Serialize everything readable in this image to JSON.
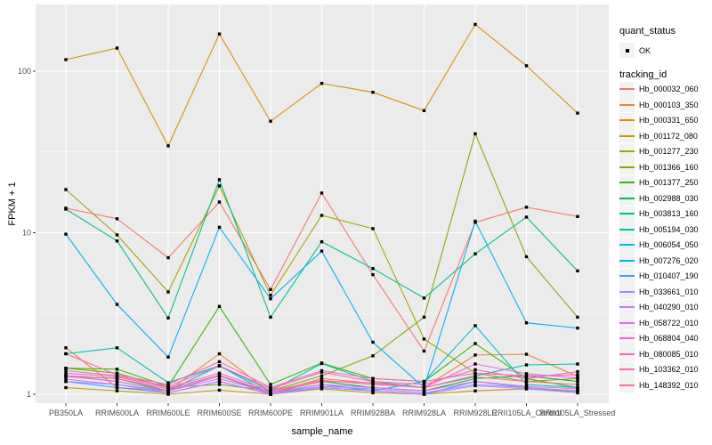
{
  "figure": {
    "background": "#FFFFFF",
    "panel_background": "#EBEBEB",
    "gridline_color": "#FFFFFF",
    "axis_text_color": "#4D4D4D",
    "tick_color": "#333333",
    "point_color": "#000000",
    "legend_key_background": "#F2F2F2"
  },
  "legend": {
    "quant_status_title": "quant_status",
    "quant_status_items": [
      {
        "label": "OK",
        "symbol": "black-square-point"
      }
    ],
    "tracking_id_title": "tracking_id"
  },
  "chart_data": {
    "type": "line",
    "title": "",
    "xlabel": "sample_name",
    "ylabel": "FPKM + 1",
    "y_scale": "log10",
    "y_ticks": [
      1,
      10,
      100
    ],
    "y_minor_ticks": [
      3.1623,
      31.623
    ],
    "ylim": [
      0.93,
      230
    ],
    "grid": true,
    "legend_position": "right",
    "point_marker": "filled-black-square",
    "quant_status": "OK",
    "categories": [
      "PB350LA",
      "RRIM600LA",
      "RRIM600LE",
      "RRIM600SE",
      "RRIM600PE",
      "RRIM901LA",
      "RRIM928BA",
      "RRIM928LA",
      "RRIM928LE",
      "RRII105LA_Control",
      "RRII105LA_Stressed"
    ],
    "series": [
      {
        "name": "Hb_000032_060",
        "color": "#F8766D",
        "values": [
          14.2,
          12.2,
          7.0,
          15.5,
          4.45,
          17.6,
          5.5,
          1.85,
          11.6,
          14.4,
          12.6
        ]
      },
      {
        "name": "Hb_000103_350",
        "color": "#EA8331",
        "values": [
          1.94,
          1.1,
          1.05,
          1.78,
          1.02,
          1.25,
          1.17,
          1.1,
          1.75,
          1.77,
          1.29
        ]
      },
      {
        "name": "Hb_000331_650",
        "color": "#D89000",
        "values": [
          118,
          139,
          34.5,
          170,
          49,
          84,
          74,
          57,
          195,
          108,
          55
        ]
      },
      {
        "name": "Hb_001172_080",
        "color": "#C09B00",
        "values": [
          1.1,
          1.05,
          1.0,
          1.06,
          1.0,
          1.08,
          1.02,
          1.0,
          1.05,
          1.08,
          1.04
        ]
      },
      {
        "name": "Hb_001277_230",
        "color": "#A3A500",
        "values": [
          18.5,
          9.7,
          4.3,
          19.5,
          4.1,
          12.8,
          10.6,
          2.2,
          1.35,
          1.2,
          1.25
        ]
      },
      {
        "name": "Hb_001366_160",
        "color": "#7CAE00",
        "values": [
          1.45,
          1.35,
          1.1,
          1.15,
          1.05,
          1.3,
          1.73,
          3.0,
          41,
          7.1,
          3.0
        ]
      },
      {
        "name": "Hb_001377_250",
        "color": "#39B600",
        "values": [
          1.45,
          1.43,
          1.12,
          3.5,
          1.15,
          1.56,
          1.25,
          1.2,
          2.06,
          1.25,
          1.1
        ]
      },
      {
        "name": "Hb_002988_030",
        "color": "#00BB4E",
        "values": [
          1.3,
          1.25,
          1.05,
          1.3,
          1.02,
          1.2,
          1.1,
          1.05,
          1.25,
          1.3,
          1.2
        ]
      },
      {
        "name": "Hb_003813_160",
        "color": "#00C087",
        "values": [
          14.0,
          8.9,
          2.97,
          21.3,
          3.0,
          8.8,
          6.0,
          3.94,
          7.4,
          12.5,
          5.8
        ]
      },
      {
        "name": "Hb_005194_030",
        "color": "#00C0B2",
        "values": [
          1.78,
          1.94,
          1.18,
          1.5,
          1.05,
          1.55,
          1.2,
          1.1,
          1.3,
          1.52,
          1.54
        ]
      },
      {
        "name": "Hb_006054_050",
        "color": "#00BCD8",
        "values": [
          1.3,
          1.2,
          1.05,
          1.5,
          1.0,
          1.1,
          1.05,
          1.2,
          2.66,
          1.15,
          1.1
        ]
      },
      {
        "name": "Hb_007276_020",
        "color": "#00B0F6",
        "values": [
          9.8,
          3.6,
          1.7,
          10.8,
          3.9,
          7.7,
          2.1,
          1.1,
          11.8,
          2.77,
          2.57
        ]
      },
      {
        "name": "Hb_010407_190",
        "color": "#35A2FF",
        "values": [
          1.2,
          1.1,
          1.02,
          1.2,
          1.0,
          1.15,
          1.05,
          1.0,
          1.2,
          1.1,
          1.05
        ]
      },
      {
        "name": "Hb_033661_010",
        "color": "#9590FF",
        "values": [
          1.2,
          1.15,
          1.05,
          1.3,
          1.0,
          1.12,
          1.08,
          1.02,
          1.15,
          1.1,
          1.05
        ]
      },
      {
        "name": "Hb_040290_010",
        "color": "#C77CFF",
        "values": [
          1.24,
          1.15,
          1.02,
          1.2,
          1.0,
          1.1,
          1.05,
          1.0,
          1.13,
          1.08,
          1.02
        ]
      },
      {
        "name": "Hb_058722_010",
        "color": "#E76BF3",
        "values": [
          1.29,
          1.2,
          1.05,
          1.25,
          1.02,
          1.15,
          1.1,
          1.05,
          1.2,
          1.12,
          1.08
        ]
      },
      {
        "name": "Hb_068804_040",
        "color": "#FA62DB",
        "values": [
          1.35,
          1.28,
          1.1,
          1.35,
          1.05,
          1.22,
          1.15,
          1.1,
          1.54,
          1.34,
          1.26
        ]
      },
      {
        "name": "Hb_080085_010",
        "color": "#FF61C7",
        "values": [
          1.4,
          1.3,
          1.12,
          1.5,
          1.08,
          1.37,
          1.2,
          1.15,
          1.42,
          1.25,
          1.38
        ]
      },
      {
        "name": "Hb_103362_010",
        "color": "#FF64B0",
        "values": [
          1.78,
          1.32,
          1.15,
          1.59,
          1.1,
          1.4,
          1.25,
          1.2,
          1.35,
          1.3,
          1.32
        ]
      },
      {
        "name": "Hb_148392_010",
        "color": "#FF6C91",
        "values": [
          1.3,
          1.25,
          1.08,
          1.31,
          1.03,
          1.2,
          1.18,
          1.1,
          1.28,
          1.2,
          1.15
        ]
      }
    ]
  }
}
